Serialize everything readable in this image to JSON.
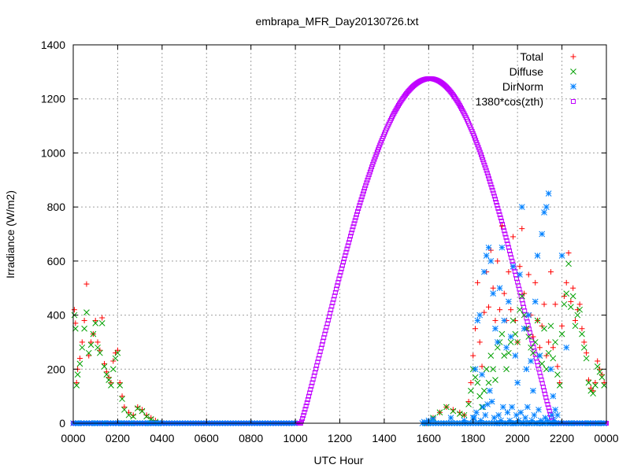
{
  "chart_data": {
    "type": "scatter",
    "title": "embrapa_MFR_Day20130726.txt",
    "xlabel": "UTC Hour",
    "ylabel": "Irradiance (W/m2)",
    "xlim": [
      0,
      24
    ],
    "ylim": [
      0,
      1400
    ],
    "grid": true,
    "legend_position": "top-right",
    "x_ticks": [
      {
        "value": 0,
        "label": "0000"
      },
      {
        "value": 2,
        "label": "0200"
      },
      {
        "value": 4,
        "label": "0400"
      },
      {
        "value": 6,
        "label": "0600"
      },
      {
        "value": 8,
        "label": "0800"
      },
      {
        "value": 10,
        "label": "1000"
      },
      {
        "value": 12,
        "label": "1200"
      },
      {
        "value": 14,
        "label": "1400"
      },
      {
        "value": 16,
        "label": "1600"
      },
      {
        "value": 18,
        "label": "1800"
      },
      {
        "value": 20,
        "label": "2000"
      },
      {
        "value": 22,
        "label": "2200"
      },
      {
        "value": 24,
        "label": "0000"
      }
    ],
    "y_ticks": [
      0,
      200,
      400,
      600,
      800,
      1000,
      1200,
      1400
    ],
    "series": [
      {
        "name": "Total",
        "marker": "plus",
        "color": "#ff0000",
        "points": [
          [
            0.05,
            420
          ],
          [
            0.1,
            370
          ],
          [
            0.15,
            150
          ],
          [
            0.2,
            200
          ],
          [
            0.3,
            240
          ],
          [
            0.4,
            300
          ],
          [
            0.5,
            380
          ],
          [
            0.6,
            515
          ],
          [
            0.7,
            250
          ],
          [
            0.8,
            300
          ],
          [
            0.9,
            330
          ],
          [
            1.0,
            380
          ],
          [
            1.1,
            300
          ],
          [
            1.2,
            270
          ],
          [
            1.3,
            390
          ],
          [
            1.4,
            220
          ],
          [
            1.5,
            190
          ],
          [
            1.6,
            170
          ],
          [
            1.7,
            150
          ],
          [
            1.8,
            230
          ],
          [
            1.9,
            260
          ],
          [
            2.0,
            270
          ],
          [
            2.1,
            150
          ],
          [
            2.2,
            100
          ],
          [
            2.3,
            60
          ],
          [
            2.5,
            40
          ],
          [
            2.7,
            30
          ],
          [
            2.9,
            60
          ],
          [
            3.1,
            50
          ],
          [
            3.3,
            30
          ],
          [
            3.5,
            20
          ],
          [
            3.7,
            10
          ],
          [
            15.9,
            0
          ],
          [
            16.2,
            20
          ],
          [
            16.5,
            40
          ],
          [
            16.8,
            60
          ],
          [
            17.1,
            50
          ],
          [
            17.4,
            40
          ],
          [
            17.6,
            30
          ],
          [
            17.8,
            80
          ],
          [
            17.9,
            150
          ],
          [
            18.0,
            250
          ],
          [
            18.1,
            350
          ],
          [
            18.2,
            520
          ],
          [
            18.3,
            300
          ],
          [
            18.4,
            210
          ],
          [
            18.5,
            410
          ],
          [
            18.6,
            560
          ],
          [
            18.7,
            430
          ],
          [
            18.8,
            640
          ],
          [
            18.9,
            500
          ],
          [
            19.0,
            380
          ],
          [
            19.1,
            600
          ],
          [
            19.2,
            420
          ],
          [
            19.3,
            730
          ],
          [
            19.4,
            480
          ],
          [
            19.5,
            380
          ],
          [
            19.6,
            560
          ],
          [
            19.7,
            420
          ],
          [
            19.8,
            690
          ],
          [
            19.9,
            380
          ],
          [
            20.0,
            300
          ],
          [
            20.1,
            580
          ],
          [
            20.2,
            720
          ],
          [
            20.3,
            480
          ],
          [
            20.4,
            350
          ],
          [
            20.5,
            550
          ],
          [
            20.6,
            400
          ],
          [
            20.7,
            320
          ],
          [
            20.8,
            520
          ],
          [
            20.9,
            380
          ],
          [
            21.0,
            280
          ],
          [
            21.1,
            360
          ],
          [
            21.2,
            440
          ],
          [
            21.3,
            250
          ],
          [
            21.4,
            300
          ],
          [
            21.5,
            560
          ],
          [
            21.6,
            280
          ],
          [
            21.7,
            440
          ],
          [
            21.8,
            210
          ],
          [
            21.9,
            150
          ],
          [
            22.0,
            360
          ],
          [
            22.1,
            470
          ],
          [
            22.2,
            520
          ],
          [
            22.3,
            630
          ],
          [
            22.4,
            450
          ],
          [
            22.5,
            500
          ],
          [
            22.6,
            380
          ],
          [
            22.7,
            420
          ],
          [
            22.8,
            440
          ],
          [
            22.9,
            350
          ],
          [
            23.0,
            300
          ],
          [
            23.1,
            260
          ],
          [
            23.2,
            160
          ],
          [
            23.3,
            130
          ],
          [
            23.4,
            120
          ],
          [
            23.5,
            150
          ],
          [
            23.6,
            230
          ],
          [
            23.7,
            200
          ],
          [
            23.8,
            180
          ],
          [
            23.9,
            150
          ]
        ]
      },
      {
        "name": "Diffuse",
        "marker": "x",
        "color": "#00a000",
        "points": [
          [
            0.05,
            400
          ],
          [
            0.1,
            350
          ],
          [
            0.15,
            140
          ],
          [
            0.2,
            180
          ],
          [
            0.3,
            220
          ],
          [
            0.4,
            280
          ],
          [
            0.5,
            350
          ],
          [
            0.6,
            410
          ],
          [
            0.7,
            260
          ],
          [
            0.8,
            290
          ],
          [
            0.9,
            330
          ],
          [
            1.0,
            370
          ],
          [
            1.1,
            280
          ],
          [
            1.2,
            260
          ],
          [
            1.3,
            370
          ],
          [
            1.4,
            210
          ],
          [
            1.5,
            180
          ],
          [
            1.6,
            160
          ],
          [
            1.7,
            140
          ],
          [
            1.8,
            200
          ],
          [
            1.9,
            240
          ],
          [
            2.0,
            260
          ],
          [
            2.1,
            140
          ],
          [
            2.2,
            90
          ],
          [
            2.3,
            50
          ],
          [
            2.5,
            30
          ],
          [
            2.7,
            25
          ],
          [
            2.9,
            55
          ],
          [
            3.1,
            45
          ],
          [
            3.3,
            25
          ],
          [
            3.5,
            15
          ],
          [
            3.7,
            5
          ],
          [
            15.9,
            0
          ],
          [
            16.2,
            20
          ],
          [
            16.5,
            40
          ],
          [
            16.8,
            60
          ],
          [
            17.1,
            45
          ],
          [
            17.4,
            35
          ],
          [
            17.6,
            30
          ],
          [
            17.8,
            70
          ],
          [
            17.9,
            120
          ],
          [
            18.0,
            200
          ],
          [
            18.1,
            170
          ],
          [
            18.2,
            150
          ],
          [
            18.3,
            100
          ],
          [
            18.4,
            60
          ],
          [
            18.5,
            120
          ],
          [
            18.6,
            200
          ],
          [
            18.7,
            150
          ],
          [
            18.8,
            250
          ],
          [
            18.9,
            200
          ],
          [
            19.0,
            160
          ],
          [
            19.1,
            280
          ],
          [
            19.2,
            300
          ],
          [
            19.3,
            330
          ],
          [
            19.4,
            250
          ],
          [
            19.5,
            200
          ],
          [
            19.6,
            260
          ],
          [
            19.7,
            300
          ],
          [
            19.8,
            380
          ],
          [
            19.9,
            330
          ],
          [
            20.0,
            300
          ],
          [
            20.1,
            420
          ],
          [
            20.2,
            470
          ],
          [
            20.3,
            400
          ],
          [
            20.4,
            350
          ],
          [
            20.5,
            320
          ],
          [
            20.6,
            280
          ],
          [
            20.7,
            260
          ],
          [
            20.8,
            300
          ],
          [
            20.9,
            380
          ],
          [
            21.0,
            250
          ],
          [
            21.1,
            220
          ],
          [
            21.2,
            350
          ],
          [
            21.3,
            200
          ],
          [
            21.4,
            260
          ],
          [
            21.5,
            360
          ],
          [
            21.6,
            240
          ],
          [
            21.7,
            300
          ],
          [
            21.8,
            180
          ],
          [
            21.9,
            140
          ],
          [
            22.0,
            330
          ],
          [
            22.1,
            440
          ],
          [
            22.2,
            480
          ],
          [
            22.3,
            590
          ],
          [
            22.4,
            430
          ],
          [
            22.5,
            470
          ],
          [
            22.6,
            360
          ],
          [
            22.7,
            400
          ],
          [
            22.8,
            420
          ],
          [
            22.9,
            330
          ],
          [
            23.0,
            280
          ],
          [
            23.1,
            240
          ],
          [
            23.2,
            150
          ],
          [
            23.3,
            120
          ],
          [
            23.4,
            110
          ],
          [
            23.5,
            140
          ],
          [
            23.6,
            210
          ],
          [
            23.7,
            190
          ],
          [
            23.8,
            170
          ],
          [
            23.9,
            140
          ]
        ]
      },
      {
        "name": "DirNorm",
        "marker": "star",
        "color": "#0080ff",
        "points": [
          [
            0.2,
            0
          ],
          [
            0.6,
            0
          ],
          [
            1.0,
            0
          ],
          [
            1.4,
            0
          ],
          [
            1.8,
            0
          ],
          [
            2.2,
            0
          ],
          [
            2.6,
            0
          ],
          [
            3.0,
            0
          ],
          [
            3.4,
            0
          ],
          [
            3.8,
            0
          ],
          [
            15.8,
            5
          ],
          [
            16.0,
            10
          ],
          [
            16.2,
            15
          ],
          [
            17.0,
            20
          ],
          [
            17.6,
            10
          ],
          [
            18.0,
            20
          ],
          [
            18.1,
            200
          ],
          [
            18.2,
            380
          ],
          [
            18.3,
            400
          ],
          [
            18.4,
            180
          ],
          [
            18.5,
            560
          ],
          [
            18.6,
            620
          ],
          [
            18.7,
            650
          ],
          [
            18.8,
            600
          ],
          [
            18.9,
            480
          ],
          [
            19.0,
            350
          ],
          [
            19.1,
            300
          ],
          [
            19.2,
            500
          ],
          [
            19.3,
            650
          ],
          [
            19.4,
            380
          ],
          [
            19.5,
            280
          ],
          [
            19.6,
            450
          ],
          [
            19.7,
            320
          ],
          [
            19.8,
            580
          ],
          [
            19.9,
            250
          ],
          [
            20.0,
            150
          ],
          [
            20.1,
            550
          ],
          [
            20.2,
            800
          ],
          [
            20.3,
            350
          ],
          [
            20.4,
            200
          ],
          [
            20.5,
            400
          ],
          [
            20.6,
            230
          ],
          [
            20.7,
            120
          ],
          [
            20.8,
            450
          ],
          [
            20.9,
            620
          ],
          [
            21.0,
            250
          ],
          [
            21.1,
            700
          ],
          [
            21.2,
            780
          ],
          [
            21.3,
            800
          ],
          [
            21.4,
            850
          ],
          [
            21.5,
            200
          ],
          [
            21.6,
            100
          ],
          [
            21.7,
            50
          ],
          [
            21.8,
            30
          ],
          [
            22.0,
            620
          ],
          [
            22.2,
            280
          ],
          [
            18.05,
            20
          ],
          [
            18.15,
            40
          ],
          [
            18.35,
            10
          ],
          [
            18.45,
            60
          ],
          [
            18.55,
            30
          ],
          [
            18.65,
            70
          ],
          [
            18.75,
            120
          ],
          [
            18.85,
            80
          ],
          [
            18.95,
            20
          ],
          [
            19.05,
            0
          ],
          [
            19.15,
            30
          ],
          [
            19.25,
            10
          ],
          [
            19.35,
            60
          ],
          [
            19.45,
            0
          ],
          [
            19.55,
            40
          ],
          [
            19.65,
            10
          ],
          [
            19.75,
            60
          ],
          [
            19.85,
            0
          ],
          [
            19.95,
            30
          ],
          [
            20.05,
            10
          ],
          [
            20.15,
            40
          ],
          [
            20.25,
            0
          ],
          [
            20.35,
            20
          ],
          [
            20.45,
            60
          ],
          [
            20.55,
            0
          ],
          [
            20.65,
            10
          ],
          [
            20.75,
            30
          ],
          [
            20.85,
            0
          ],
          [
            20.95,
            50
          ],
          [
            21.05,
            10
          ],
          [
            21.15,
            0
          ],
          [
            21.25,
            20
          ],
          [
            21.35,
            10
          ],
          [
            21.45,
            0
          ],
          [
            21.55,
            30
          ],
          [
            21.65,
            10
          ],
          [
            21.75,
            0
          ],
          [
            22.4,
            0
          ],
          [
            22.8,
            0
          ],
          [
            23.2,
            0
          ],
          [
            23.6,
            0
          ],
          [
            23.9,
            0
          ]
        ]
      },
      {
        "name": "1380*cos(zth)",
        "marker": "square",
        "color": "#c000ff",
        "curve": {
          "zero_before": 10.25,
          "zero_after": 21.6,
          "peak_hour": 16.05,
          "peak_value": 1275
        }
      }
    ]
  }
}
